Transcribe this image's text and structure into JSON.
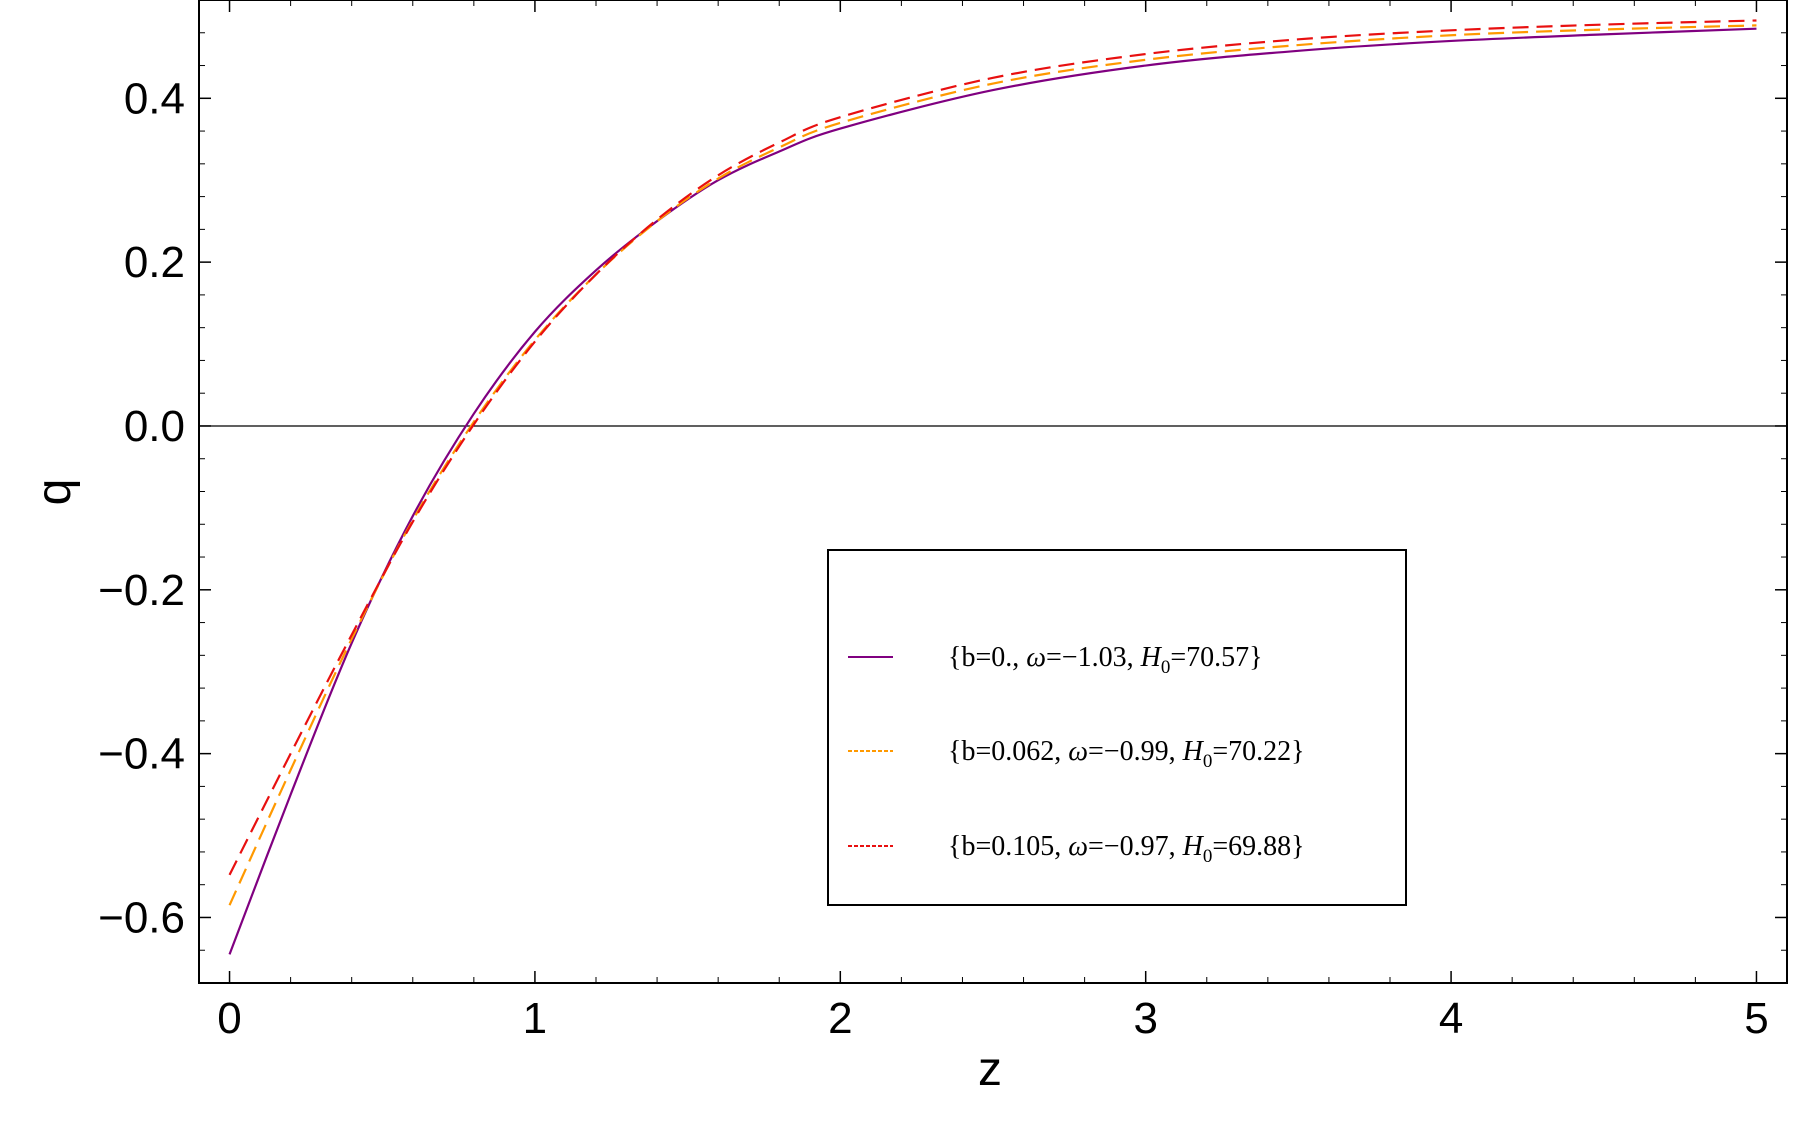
{
  "chart_data": {
    "type": "line",
    "xlabel": "z",
    "ylabel": "q",
    "xlim": [
      -0.1,
      5.1
    ],
    "ylim": [
      -0.68,
      0.52
    ],
    "x_ticks": [
      0,
      1,
      2,
      3,
      4,
      5
    ],
    "x_tick_labels": [
      "0",
      "1",
      "2",
      "3",
      "4",
      "5"
    ],
    "y_ticks": [
      -0.6,
      -0.4,
      -0.2,
      0.0,
      0.2,
      0.4
    ],
    "y_tick_labels": [
      "−0.6",
      "−0.4",
      "−0.2",
      "0.0",
      "0.2",
      "0.4"
    ],
    "zero_line": true,
    "grid": false,
    "legend_position": "center-right",
    "series": [
      {
        "name": "{b=0., ω=−1.03, H₀=70.57}",
        "legend": {
          "base": "{b=0., ",
          "omega": "ω",
          "mid": "=−1.03, ",
          "H": "H",
          "sub": "0",
          "tail": "=70.57}"
        },
        "color": "#800080",
        "style": "solid",
        "x": [
          0,
          0.2,
          0.4,
          0.6,
          0.8,
          1.0,
          1.2,
          1.4,
          1.6,
          1.8,
          2.0,
          2.5,
          3.0,
          3.5,
          4.0,
          4.5,
          5.0
        ],
        "values": [
          -0.645,
          -0.45,
          -0.265,
          -0.11,
          0.015,
          0.115,
          0.19,
          0.25,
          0.3,
          0.335,
          0.363,
          0.41,
          0.44,
          0.458,
          0.47,
          0.478,
          0.485
        ]
      },
      {
        "name": "{b=0.062, ω=−0.99, H₀=70.22}",
        "legend": {
          "base": "{b=0.062, ",
          "omega": "ω",
          "mid": "=−0.99, ",
          "H": "H",
          "sub": "0",
          "tail": "=70.22}"
        },
        "color": "#FF9900",
        "style": "dashed",
        "x": [
          0,
          0.2,
          0.4,
          0.6,
          0.8,
          1.0,
          1.2,
          1.4,
          1.6,
          1.8,
          2.0,
          2.5,
          3.0,
          3.5,
          4.0,
          4.5,
          5.0
        ],
        "values": [
          -0.585,
          -0.42,
          -0.26,
          -0.115,
          0.005,
          0.105,
          0.185,
          0.25,
          0.302,
          0.34,
          0.37,
          0.418,
          0.447,
          0.465,
          0.477,
          0.484,
          0.489
        ]
      },
      {
        "name": "{b=0.105, ω=−0.97, H₀=69.88}",
        "legend": {
          "base": "{b=0.105, ",
          "omega": "ω",
          "mid": "=−0.97, ",
          "H": "H",
          "sub": "0",
          "tail": "=69.88}"
        },
        "color": "#E81010",
        "style": "dashed",
        "x": [
          0,
          0.2,
          0.4,
          0.6,
          0.8,
          1.0,
          1.2,
          1.4,
          1.6,
          1.8,
          2.0,
          2.5,
          3.0,
          3.5,
          4.0,
          4.5,
          5.0
        ],
        "values": [
          -0.548,
          -0.4,
          -0.255,
          -0.117,
          0.002,
          0.103,
          0.185,
          0.252,
          0.306,
          0.346,
          0.377,
          0.425,
          0.454,
          0.472,
          0.483,
          0.49,
          0.495
        ]
      }
    ]
  }
}
